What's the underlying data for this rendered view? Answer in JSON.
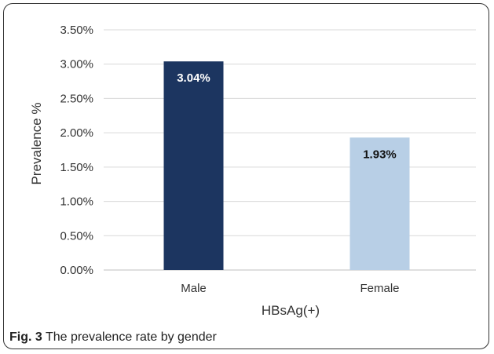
{
  "chart_data": {
    "type": "bar",
    "categories": [
      "Male",
      "Female"
    ],
    "values": [
      3.04,
      1.93
    ],
    "value_labels": [
      "3.04%",
      "1.93%"
    ],
    "bar_colors": [
      "#1c3560",
      "#b8cfe6"
    ],
    "label_colors": [
      "#ffffff",
      "#111111"
    ],
    "xlabel": "HBsAg(+)",
    "ylabel": "Prevalence %",
    "ylim": [
      0,
      3.5
    ],
    "yticks": [
      0,
      0.5,
      1.0,
      1.5,
      2.0,
      2.5,
      3.0,
      3.5
    ],
    "ytick_labels": [
      "0.00%",
      "0.50%",
      "1.00%",
      "1.50%",
      "2.00%",
      "2.50%",
      "3.00%",
      "3.50%"
    ],
    "grid": true
  },
  "caption": {
    "prefix": "Fig. 3",
    "text": " The prevalence rate by gender"
  }
}
